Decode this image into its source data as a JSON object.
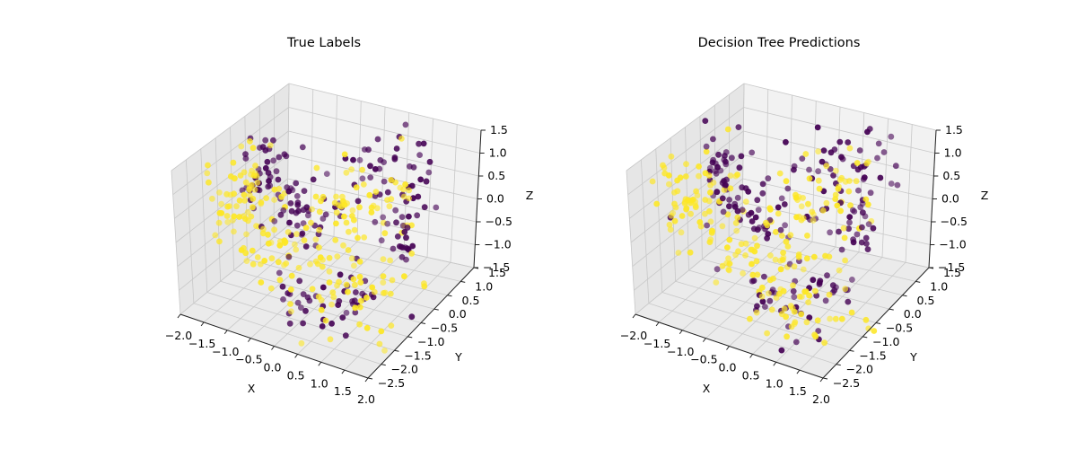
{
  "colors": {
    "class0": "#440154",
    "class1": "#fde725",
    "pane_back": "#f2f2f2",
    "pane_side": "#e6e6e6",
    "pane_floor": "#ebebeb",
    "grid": "#c8c8c8"
  },
  "chart_data": [
    {
      "type": "scatter3d",
      "title": "True Labels",
      "xlabel": "X",
      "ylabel": "Y",
      "zlabel": "Z",
      "x_ticks": [
        "−2.0",
        "−1.5",
        "−1.0",
        "−0.5",
        "0.0",
        "0.5",
        "1.0",
        "1.5",
        "2.0"
      ],
      "y_ticks": [
        "−2.5",
        "−2.0",
        "−1.5",
        "−1.0",
        "−0.5",
        "0.0",
        "0.5",
        "1.0",
        "1.5"
      ],
      "z_ticks": [
        "−1.5",
        "−1.0",
        "−0.5",
        "0.0",
        "0.5",
        "1.0",
        "1.5"
      ],
      "xlim": [
        -2.0,
        2.0
      ],
      "ylim": [
        -2.5,
        1.5
      ],
      "zlim": [
        -1.5,
        1.5
      ],
      "series_colors": [
        "#440154",
        "#fde725"
      ],
      "seed": 7
    },
    {
      "type": "scatter3d",
      "title": "Decision Tree Predictions",
      "xlabel": "X",
      "ylabel": "Y",
      "zlabel": "Z",
      "x_ticks": [
        "−2.0",
        "−1.5",
        "−1.0",
        "−0.5",
        "0.0",
        "0.5",
        "1.0",
        "1.5",
        "2.0"
      ],
      "y_ticks": [
        "−2.5",
        "−2.0",
        "−1.5",
        "−1.0",
        "−0.5",
        "0.0",
        "0.5",
        "1.0",
        "1.5"
      ],
      "z_ticks": [
        "−1.5",
        "−1.0",
        "−0.5",
        "0.0",
        "0.5",
        "1.0",
        "1.5"
      ],
      "xlim": [
        -2.0,
        2.0
      ],
      "ylim": [
        -2.5,
        1.5
      ],
      "zlim": [
        -1.5,
        1.5
      ],
      "series_colors": [
        "#440154",
        "#fde725"
      ],
      "seed": 7
    }
  ]
}
